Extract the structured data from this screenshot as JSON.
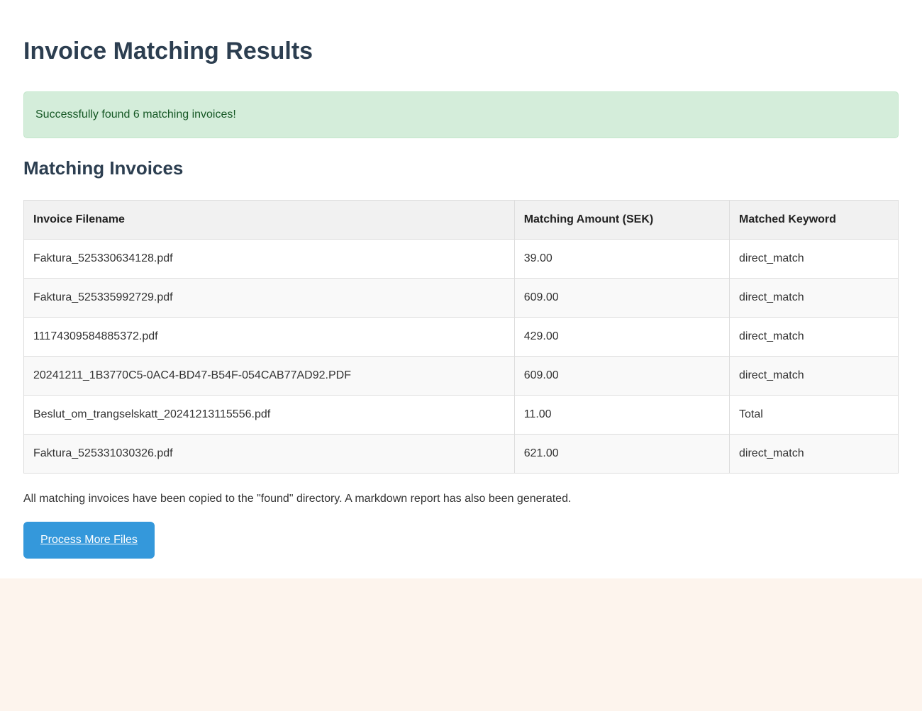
{
  "page": {
    "title": "Invoice Matching Results",
    "alert": {
      "message": "Successfully found 6 matching invoices!"
    },
    "section_heading": "Matching Invoices",
    "table": {
      "columns": {
        "filename": "Invoice Filename",
        "amount": "Matching Amount (SEK)",
        "keyword": "Matched Keyword"
      },
      "rows": [
        {
          "filename": "Faktura_525330634128.pdf",
          "amount": "39.00",
          "keyword": "direct_match"
        },
        {
          "filename": "Faktura_525335992729.pdf",
          "amount": "609.00",
          "keyword": "direct_match"
        },
        {
          "filename": "11174309584885372.pdf",
          "amount": "429.00",
          "keyword": "direct_match"
        },
        {
          "filename": "20241211_1B3770C5-0AC4-BD47-B54F-054CAB77AD92.PDF",
          "amount": "609.00",
          "keyword": "direct_match"
        },
        {
          "filename": "Beslut_om_trangselskatt_20241213115556.pdf",
          "amount": "11.00",
          "keyword": "Total"
        },
        {
          "filename": "Faktura_525331030326.pdf",
          "amount": "621.00",
          "keyword": "direct_match"
        }
      ]
    },
    "footer_note": "All matching invoices have been copied to the \"found\" directory. A markdown report has also been generated.",
    "button_label": "Process More Files",
    "colors": {
      "heading": "#2c3e50",
      "alert_bg": "#d4edda",
      "alert_border": "#c3e6cb",
      "alert_text": "#155724",
      "button_bg": "#3498db",
      "footer_bg": "#fdf4ed",
      "table_border": "#dddddd",
      "table_header_bg": "#f1f1f1",
      "table_stripe_bg": "#f9f9f9",
      "body_text": "#333333"
    }
  }
}
